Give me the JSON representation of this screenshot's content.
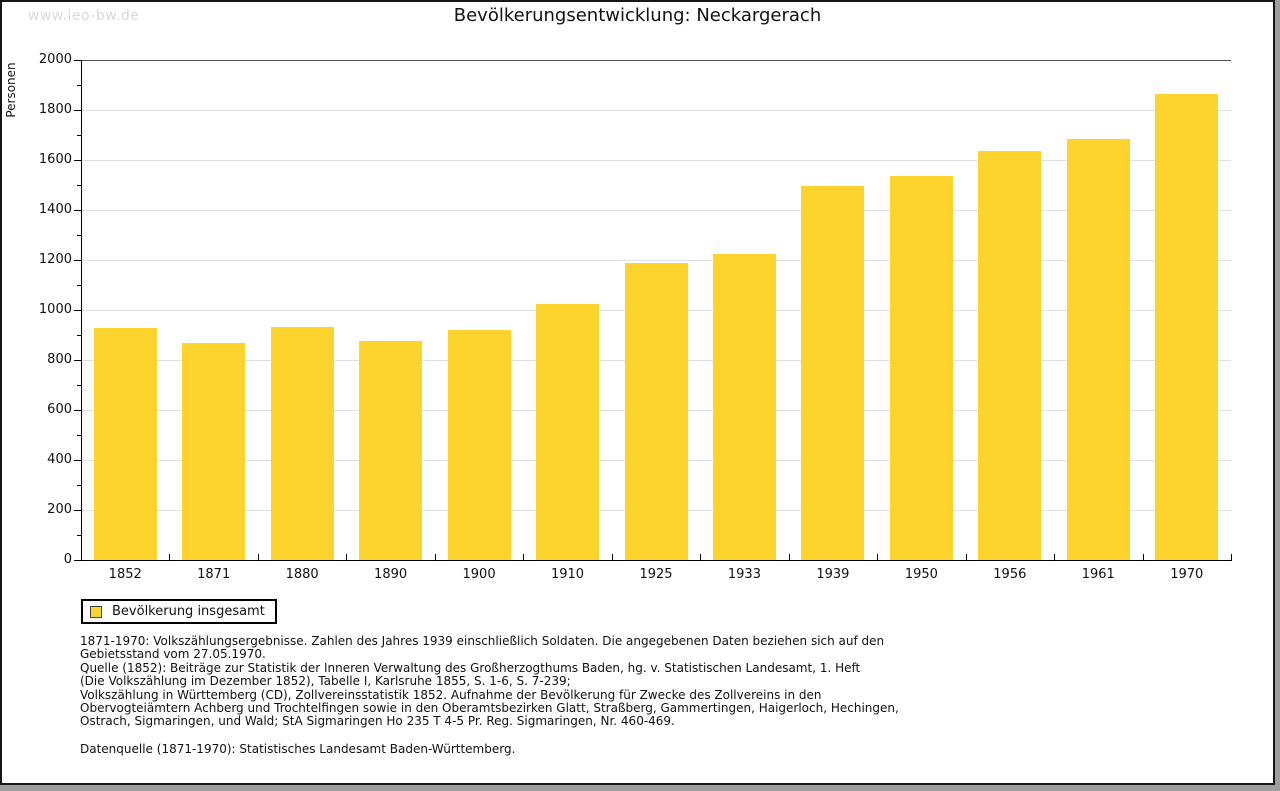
{
  "page": {
    "watermark": "www.leo-bw.de",
    "title": "Bevölkerungsentwicklung: Neckargerach"
  },
  "chart_data": {
    "type": "bar",
    "title": "Bevölkerungsentwicklung: Neckargerach",
    "xlabel": "",
    "ylabel": "Personen",
    "categories": [
      "1852",
      "1871",
      "1880",
      "1890",
      "1900",
      "1910",
      "1925",
      "1933",
      "1939",
      "1950",
      "1956",
      "1961",
      "1970"
    ],
    "values": [
      930,
      867,
      933,
      875,
      919,
      1023,
      1189,
      1226,
      1496,
      1536,
      1637,
      1685,
      1866
    ],
    "ylim": [
      0,
      2000
    ],
    "ytick_step": 200,
    "yminor_step": 100,
    "grid": true,
    "bar_color": "#fcd42d",
    "legend_position": "bottom-left",
    "legend": [
      {
        "label": "Bevölkerung insgesamt",
        "color": "#fcd42d"
      }
    ]
  },
  "legend": {
    "label": "Bevölkerung insgesamt"
  },
  "footnotes": {
    "lines": [
      "1871-1970: Volkszählungsergebnisse. Zahlen des Jahres 1939 einschließlich Soldaten. Die angegebenen Daten beziehen sich auf den",
      "Gebietsstand vom 27.05.1970.",
      "Quelle (1852): Beiträge zur Statistik der Inneren Verwaltung des Großherzogthums Baden, hg. v. Statistischen Landesamt, 1. Heft",
      "(Die Volkszählung im Dezember 1852), Tabelle I, Karlsruhe 1855, S. 1-6, S. 7-239;",
      "Volkszählung in Württemberg (CD), Zollvereinsstatistik 1852. Aufnahme der Bevölkerung für Zwecke des Zollvereins in den",
      "Obervogteiämtern Achberg und Trochtelfingen sowie in den Oberamtsbezirken Glatt, Straßberg, Gammertingen, Haigerloch, Hechingen,",
      "Ostrach, Sigmaringen, und Wald; StA Sigmaringen Ho 235 T 4-5 Pr. Reg. Sigmaringen, Nr. 460-469."
    ],
    "datasource": "Datenquelle (1871-1970): Statistisches Landesamt Baden-Württemberg."
  }
}
